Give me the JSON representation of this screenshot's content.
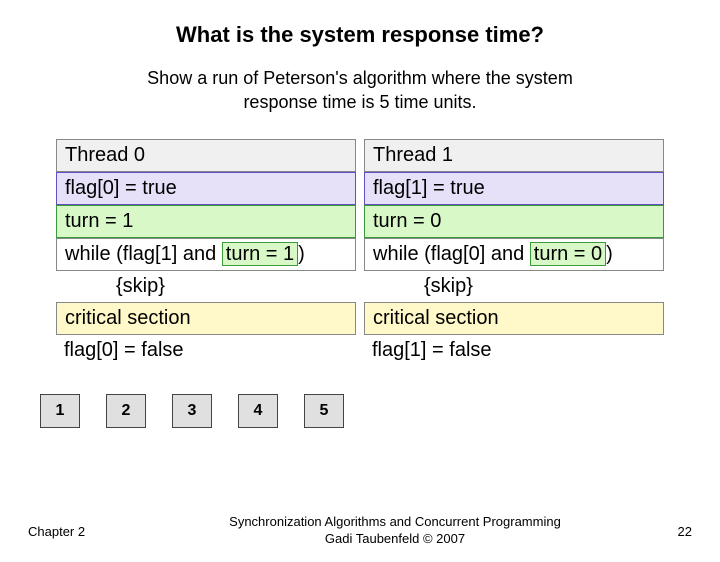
{
  "title": "What is the system response time?",
  "subtitle": "Show a run of Peterson's algorithm where the system response time is 5 time units.",
  "threads": {
    "left": {
      "header": "Thread 0",
      "flag": "flag[0] = true",
      "turn": "turn = 1",
      "while_pre": "while (flag[1] and ",
      "while_hl": "turn = 1",
      "while_post": ")",
      "skip": "{skip}",
      "cs": "critical section",
      "reset": "flag[0] = false"
    },
    "right": {
      "header": "Thread 1",
      "flag": "flag[1] = true",
      "turn": "turn = 0",
      "while_pre": "while (flag[0] and ",
      "while_hl": "turn = 0",
      "while_post": ")",
      "skip": "{skip}",
      "cs": "critical section",
      "reset": "flag[1] = false"
    }
  },
  "timeline": [
    "1",
    "2",
    "3",
    "4",
    "5"
  ],
  "footer": {
    "chapter": "Chapter 2",
    "center_line1": "Synchronization Algorithms and Concurrent Programming",
    "center_line2": "Gadi Taubenfeld © 2007",
    "page": "22"
  },
  "colors": {
    "lavender_bg": "#e6e1f8",
    "lavender_border": "#6050c0",
    "green_bg": "#d8f8c8",
    "green_border": "#3a9a3a",
    "yellow_bg": "#fff8c8",
    "gray_bg": "#e0e0e0",
    "box_border": "#888888"
  }
}
